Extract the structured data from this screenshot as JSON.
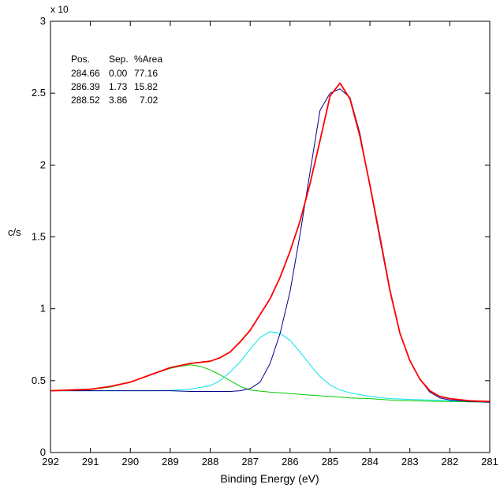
{
  "chart_data": {
    "type": "line",
    "title": "",
    "xlabel": "Binding Energy (eV)",
    "ylabel": "c/s",
    "y_exponent_label": "x 10",
    "xlim": [
      292,
      281
    ],
    "ylim": [
      0,
      3
    ],
    "x_reversed": true,
    "x_ticks": [
      292,
      291,
      290,
      289,
      288,
      287,
      286,
      285,
      284,
      283,
      282,
      281
    ],
    "y_ticks": [
      0,
      0.5,
      1,
      1.5,
      2,
      2.5,
      3
    ],
    "y_tick_labels": [
      "0",
      "0.5",
      "1",
      "1.5",
      "2",
      "2.5",
      "3"
    ],
    "grid": false,
    "legend": null,
    "annotation_table": {
      "headers": [
        "Pos.",
        "Sep.",
        "%Area"
      ],
      "rows": [
        [
          "284.66",
          "0.00",
          "77.16"
        ],
        [
          "286.39",
          "1.73",
          "15.82"
        ],
        [
          "288.52",
          "3.86",
          "7.02"
        ]
      ]
    },
    "series": [
      {
        "color": "#ff0000",
        "stroke_width": 1.8,
        "x": [
          292,
          291.5,
          291,
          290.5,
          290,
          289.5,
          289,
          288.5,
          288,
          287.75,
          287.5,
          287.25,
          287,
          286.75,
          286.5,
          286.25,
          286,
          285.75,
          285.5,
          285.25,
          285,
          284.75,
          284.5,
          284.25,
          284,
          283.75,
          283.5,
          283.25,
          283,
          282.75,
          282.5,
          282.25,
          282,
          281.5,
          281
        ],
        "y": [
          0.43,
          0.435,
          0.44,
          0.46,
          0.49,
          0.54,
          0.59,
          0.62,
          0.635,
          0.66,
          0.7,
          0.77,
          0.85,
          0.96,
          1.07,
          1.22,
          1.4,
          1.61,
          1.87,
          2.17,
          2.48,
          2.57,
          2.46,
          2.2,
          1.86,
          1.5,
          1.13,
          0.83,
          0.64,
          0.51,
          0.43,
          0.39,
          0.375,
          0.36,
          0.355
        ]
      },
      {
        "color": "#00008b",
        "stroke_width": 1,
        "x": [
          292,
          291,
          290,
          289,
          288.5,
          288,
          287.5,
          287.25,
          287,
          286.75,
          286.5,
          286.25,
          286,
          285.75,
          285.5,
          285.25,
          285,
          284.75,
          284.5,
          284.25,
          284,
          283.75,
          283.5,
          283.25,
          283,
          282.75,
          282.5,
          282.25,
          282,
          281.5,
          281
        ],
        "y": [
          0.43,
          0.43,
          0.43,
          0.43,
          0.425,
          0.425,
          0.425,
          0.43,
          0.445,
          0.49,
          0.62,
          0.83,
          1.12,
          1.52,
          1.95,
          2.38,
          2.5,
          2.53,
          2.47,
          2.22,
          1.85,
          1.48,
          1.12,
          0.83,
          0.64,
          0.51,
          0.42,
          0.38,
          0.365,
          0.355,
          0.35
        ]
      },
      {
        "color": "#00e5ee",
        "stroke_width": 1,
        "x": [
          292,
          291,
          290,
          289.5,
          289,
          288.5,
          288,
          287.75,
          287.5,
          287.25,
          287,
          286.75,
          286.5,
          286.25,
          286,
          285.75,
          285.5,
          285.25,
          285,
          284.75,
          284.5,
          284,
          283.5,
          283,
          282.5,
          282,
          281.5,
          281
        ],
        "y": [
          0.43,
          0.43,
          0.43,
          0.43,
          0.432,
          0.44,
          0.465,
          0.5,
          0.56,
          0.63,
          0.72,
          0.8,
          0.84,
          0.83,
          0.78,
          0.7,
          0.61,
          0.53,
          0.47,
          0.435,
          0.415,
          0.39,
          0.375,
          0.37,
          0.365,
          0.36,
          0.355,
          0.35
        ]
      },
      {
        "color": "#00cc00",
        "stroke_width": 1,
        "x": [
          292,
          291.5,
          291,
          290.5,
          290,
          289.5,
          289,
          288.75,
          288.5,
          288.25,
          288,
          287.75,
          287.5,
          287.25,
          287,
          286.5,
          286,
          285.5,
          285,
          284.5,
          284,
          283.5,
          283,
          282.5,
          282,
          281.5,
          281
        ],
        "y": [
          0.43,
          0.432,
          0.438,
          0.455,
          0.49,
          0.54,
          0.585,
          0.6,
          0.61,
          0.6,
          0.575,
          0.54,
          0.5,
          0.46,
          0.435,
          0.42,
          0.41,
          0.4,
          0.39,
          0.38,
          0.375,
          0.365,
          0.36,
          0.357,
          0.355,
          0.352,
          0.35
        ]
      }
    ]
  }
}
